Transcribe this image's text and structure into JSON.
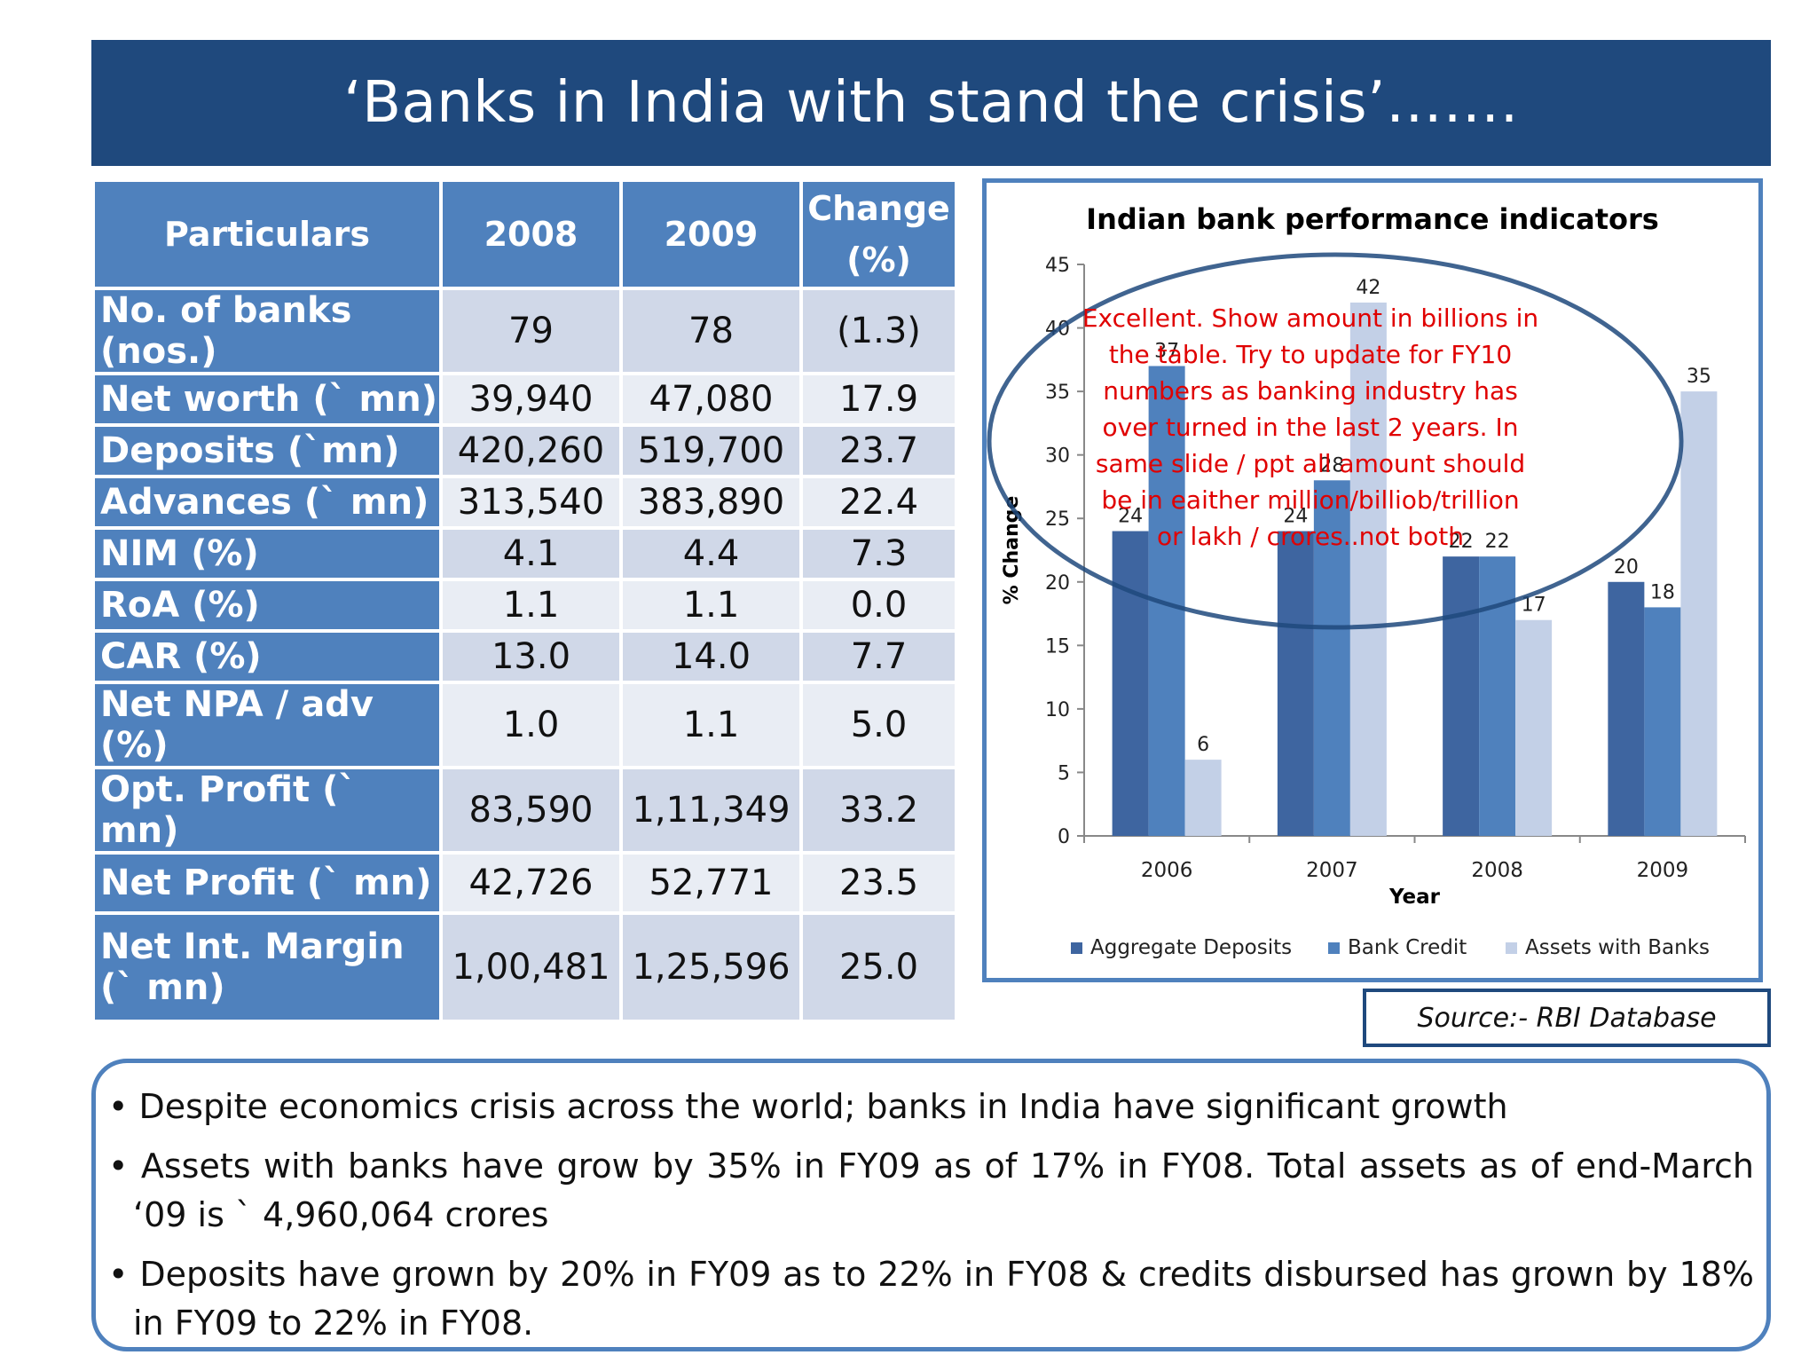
{
  "title": "‘Banks in India with stand the crisis’…….",
  "table": {
    "headers": [
      "Particulars",
      "2008",
      "2009",
      "Change (%)"
    ],
    "rows": [
      [
        "No. of banks (nos.)",
        "79",
        "78",
        "(1.3)"
      ],
      [
        "Net worth (` mn)",
        "39,940",
        "47,080",
        "17.9"
      ],
      [
        "Deposits (`mn)",
        "420,260",
        "519,700",
        "23.7"
      ],
      [
        "Advances (` mn)",
        "313,540",
        "383,890",
        "22.4"
      ],
      [
        "NIM (%)",
        "4.1",
        "4.4",
        "7.3"
      ],
      [
        "RoA (%)",
        "1.1",
        "1.1",
        "0.0"
      ],
      [
        "CAR (%)",
        "13.0",
        "14.0",
        "7.7"
      ],
      [
        "Net NPA / adv (%)",
        "1.0",
        "1.1",
        "5.0"
      ],
      [
        "Opt. Profit  (` mn)",
        "83,590",
        "1,11,349",
        "33.2"
      ],
      [
        "Net Profit (` mn)",
        "42,726",
        "52,771",
        "23.5"
      ],
      [
        "Net Int. Margin (` mn)",
        "1,00,481",
        "1,25,596",
        "25.0"
      ]
    ]
  },
  "chart_data": {
    "type": "bar",
    "title": "Indian bank performance indicators",
    "xlabel": "Year",
    "ylabel": "% Change",
    "ylim": [
      0,
      45
    ],
    "yticks": [
      0,
      5,
      10,
      15,
      20,
      25,
      30,
      35,
      40,
      45
    ],
    "categories": [
      "2006",
      "2007",
      "2008",
      "2009"
    ],
    "series": [
      {
        "name": "Aggregate Deposits",
        "values": [
          24,
          24,
          22,
          20
        ],
        "color": "#3e65a0"
      },
      {
        "name": "Bank Credit",
        "values": [
          37,
          28,
          22,
          18
        ],
        "color": "#4f81bd"
      },
      {
        "name": "Assets with Banks",
        "values": [
          6,
          42,
          17,
          35
        ],
        "color": "#c3d0e7"
      }
    ],
    "legend": "bottom"
  },
  "annotation": {
    "lines": [
      "Excellent. Show amount in billions in",
      "the table. Try to update for FY10",
      "numbers as banking industry has",
      "over turned in the last 2 years. In",
      "same slide / ppt all amount should",
      "be in eaither million/billiob/trillion",
      "or lakh / crores..not both"
    ],
    "color": "#e00000"
  },
  "source": "Source:- RBI Database",
  "bullets": [
    "Despite economics crisis across the world; banks in India have significant growth",
    "Assets  with banks have grow by 35% in FY09 as of 17% in FY08. Total assets as of end-March ‘09 is ` 4,960,064 crores",
    "Deposits have grown by 20% in FY09 as to  22% in FY08 & credits disbursed has grown by 18% in FY09 to 22% in FY08."
  ]
}
